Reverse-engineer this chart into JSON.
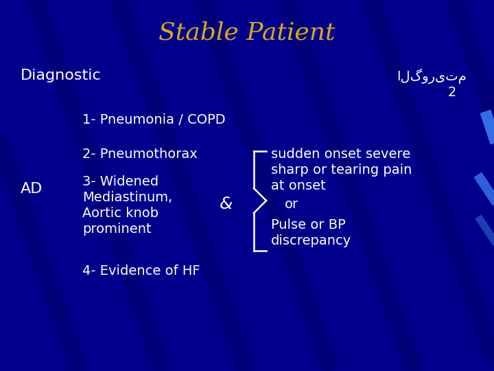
{
  "title": "Stable Patient",
  "title_color": "#DAA520",
  "title_fontsize": 26,
  "bg_color": "#00008B",
  "text_color": "#FFFFFF",
  "arabic_text": "الگوریتم",
  "arabic_number": "2",
  "diagnostic_label": "Diagnostic",
  "item1": "1- Pneumonia / COPD",
  "item2": "2- Pneumothorax",
  "item3_line1": "3- Widened",
  "item3_line2": "Mediastinum,",
  "item3_line3": "Aortic knob",
  "item3_line4": "prominent",
  "ad_label": "AD",
  "ampersand": "&",
  "right_line1": "sudden onset severe",
  "right_line2": "sharp or tearing pain",
  "right_line3": "at onset",
  "right_line4": "or",
  "right_line5": "Pulse or BP",
  "right_line6": "discrepancy",
  "item4": "4- Evidence of HF",
  "font_size": 14,
  "stripe_color": "#000066"
}
